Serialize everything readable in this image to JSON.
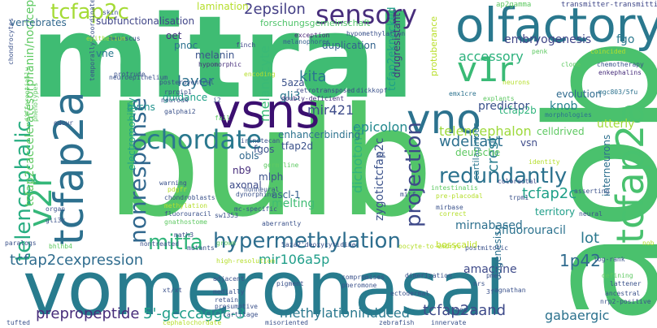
{
  "words": [
    {
      "t": "mitral",
      "c": "#3fbc73"
    },
    {
      "t": "bulb",
      "c": "#52c569"
    },
    {
      "t": "vomeronasal",
      "c": "#287c8e"
    },
    {
      "t": "aob",
      "c": "#4ac16d"
    },
    {
      "t": "olfactory",
      "c": "#2a788e"
    },
    {
      "t": "vsns",
      "c": "#3b0f70"
    },
    {
      "t": "vno",
      "c": "#2c728e"
    },
    {
      "t": "tcfap2a",
      "c": "#2d708e"
    },
    {
      "t": "tcfap2a",
      "c": "#48c16e"
    },
    {
      "t": "v2r",
      "c": "#35b779"
    },
    {
      "t": "v1r",
      "c": "#3aba76"
    },
    {
      "t": "sensory",
      "c": "#472d7b"
    },
    {
      "t": "tcfap2c",
      "c": "#a5db36"
    },
    {
      "t": "chordate",
      "c": "#2a788e"
    },
    {
      "t": "nonresponse",
      "c": "#31688e"
    },
    {
      "t": "telencephalic",
      "c": "#27ad81"
    },
    {
      "t": "hypermethylation",
      "c": "#2e6e8e"
    },
    {
      "t": "mitfa",
      "c": "#31b57b"
    },
    {
      "t": "redundantly",
      "c": "#2c728e"
    },
    {
      "t": "projection",
      "c": "#3e4989"
    },
    {
      "t": "tcfap2cexpression",
      "c": "#2f6c8e"
    },
    {
      "t": "prepropeptide",
      "c": "#472c7a"
    },
    {
      "t": "5'-gcccaggc-3",
      "c": "#1f9e89"
    },
    {
      "t": "methylationinduced",
      "c": "#2a788e"
    },
    {
      "t": "tcfap2aand",
      "c": "#3e4a89"
    },
    {
      "t": "gabaergic",
      "c": "#2c728e"
    },
    {
      "t": "2epsilon",
      "c": "#433e85"
    },
    {
      "t": "accessory",
      "c": "#2db27d"
    },
    {
      "t": "layer",
      "c": "#2d708e"
    },
    {
      "t": "kita",
      "c": "#2a788e"
    },
    {
      "t": "gli3",
      "c": "#2a788e"
    },
    {
      "t": "melanocyte",
      "c": "#3aba76"
    },
    {
      "t": "tcfap2eknocked",
      "c": "#1fa088"
    },
    {
      "t": "embryogenesis",
      "c": "#404688"
    },
    {
      "t": "fgo",
      "c": "#2a788e"
    },
    {
      "t": "evolution",
      "c": "#2f6b8e"
    },
    {
      "t": "knob",
      "c": "#25838e"
    },
    {
      "t": "utterly",
      "c": "#a2da37"
    },
    {
      "t": "telencephalon",
      "c": "#9dd93b"
    },
    {
      "t": "wdeltaet",
      "c": "#2d708e"
    },
    {
      "t": "epicolon",
      "c": "#23898e"
    },
    {
      "t": "mir421",
      "c": "#3e4c8a"
    },
    {
      "t": "tcfap2c",
      "c": "#1fa088"
    },
    {
      "t": "tcfap2b",
      "c": "#2fb47c"
    },
    {
      "t": "lot",
      "c": "#2a788e"
    },
    {
      "t": "1p42",
      "c": "#2f6b8e"
    },
    {
      "t": "crest",
      "c": "#287d8e"
    },
    {
      "t": "tcfap2cacceleratesorphanin/nociceptin",
      "c": "#5ec962"
    },
    {
      "t": "dichotomy",
      "c": "#31b57b"
    },
    {
      "t": "zygotictcfap2c",
      "c": "#3b528b"
    },
    {
      "t": "amacrine",
      "c": "#3e4a89"
    },
    {
      "t": "mirnabased",
      "c": "#2d708e"
    },
    {
      "t": "5fluorouracil",
      "c": "#2c728e"
    },
    {
      "t": "oogenesis",
      "c": "#2d708e"
    },
    {
      "t": "mir106a5p",
      "c": "#1f9e89"
    },
    {
      "t": "bvsns",
      "c": "#20928c"
    },
    {
      "t": "guidance",
      "c": "#1fa088"
    },
    {
      "t": "melting",
      "c": "#3fbc73"
    },
    {
      "t": "subfunctionalisation",
      "c": "#404688"
    },
    {
      "t": "forschungsgemeinschaft",
      "c": "#50c46a"
    },
    {
      "t": "lamination",
      "c": "#b5de2b"
    },
    {
      "t": "vertebrates",
      "c": "#31688e"
    },
    {
      "t": "oet",
      "c": "#463480"
    },
    {
      "t": "vne",
      "c": "#2a788e"
    },
    {
      "t": "pnoc",
      "c": "#2c728e"
    },
    {
      "t": "melanin",
      "c": "#3b528b"
    },
    {
      "t": "5aza",
      "c": "#3b528b"
    },
    {
      "t": "duplication",
      "c": "#33638d"
    },
    {
      "t": "drugresistant",
      "c": "#46327e"
    },
    {
      "t": "enhancerbinding",
      "c": "#2c728e"
    },
    {
      "t": "tfap2d",
      "c": "#3b528b"
    },
    {
      "t": "fgos",
      "c": "#3b528b"
    },
    {
      "t": "obls",
      "c": "#31688e"
    },
    {
      "t": "nb9",
      "c": "#472d7b"
    },
    {
      "t": "mlph",
      "c": "#3b528b"
    },
    {
      "t": "axonal",
      "c": "#3e4c8a"
    },
    {
      "t": "ascl-1",
      "c": "#35608d"
    },
    {
      "t": "cartilaginous",
      "c": "#2a788e"
    },
    {
      "t": "territory",
      "c": "#1f9e89"
    },
    {
      "t": "interneurons",
      "c": "#2d708e"
    },
    {
      "t": "celldrived",
      "c": "#5ec962"
    },
    {
      "t": "deutsche",
      "c": "#5ec962"
    },
    {
      "t": "vsn",
      "c": "#3e4c8a"
    },
    {
      "t": "electromobility",
      "c": "#20a386"
    },
    {
      "t": "bosscalid",
      "c": "#bddf26"
    },
    {
      "t": "predictor",
      "c": "#3b528b"
    },
    {
      "t": "protuberance",
      "c": "#b8de29"
    },
    {
      "t": "transmitter-transmitting",
      "c": "#3f4788"
    },
    {
      "t": "ap2gamma",
      "c": "#5ec962"
    },
    {
      "t": "chondrocytes",
      "c": "#3b528b"
    },
    {
      "t": "exception",
      "c": "#482576"
    },
    {
      "t": "melanophores",
      "c": "#35608d"
    },
    {
      "t": "hypomethylation",
      "c": "#3b528b"
    },
    {
      "t": "meniscus",
      "c": "#3e4c8a"
    },
    {
      "t": "finch",
      "c": "#3f4788"
    },
    {
      "t": "epithelium",
      "c": "#a0da39"
    },
    {
      "t": "hypomorphic",
      "c": "#472d7b"
    },
    {
      "t": "protrude",
      "c": "#3b528b"
    },
    {
      "t": "neuroepithelium",
      "c": "#3b528b"
    },
    {
      "t": "posteroventral",
      "c": "#3b528b"
    },
    {
      "t": "rprgip1",
      "c": "#3b528b"
    },
    {
      "t": "encoding",
      "c": "#b5de2b"
    },
    {
      "t": "retrotransposed",
      "c": "#3f4788"
    },
    {
      "t": "doubly-deficient",
      "c": "#46327e"
    },
    {
      "t": "neurod4",
      "c": "#3b528b"
    },
    {
      "t": "galphai2",
      "c": "#3b528b"
    },
    {
      "t": "dickkopf",
      "c": "#3b528b"
    },
    {
      "t": "emx1cre",
      "c": "#2c728e"
    },
    {
      "t": "explants",
      "c": "#5ec962"
    },
    {
      "t": "morphologies",
      "c": "#2c728e"
    },
    {
      "t": "mgc803/5fu",
      "c": "#2c728e"
    },
    {
      "t": "chemotherapy",
      "c": "#3b528b"
    },
    {
      "t": "enkephalins",
      "c": "#472d7b"
    },
    {
      "t": "coincided",
      "c": "#b5de2b"
    },
    {
      "t": "clone",
      "c": "#5ec962"
    },
    {
      "t": "neurons",
      "c": "#b5de2b"
    },
    {
      "t": "penk",
      "c": "#5ec962"
    },
    {
      "t": "odour",
      "c": "#3b528b"
    },
    {
      "t": "irinotecan",
      "c": "#3b528b"
    },
    {
      "t": "fail",
      "c": "#5ec962"
    },
    {
      "t": "identity",
      "c": "#b5de2b"
    },
    {
      "t": "germ-line",
      "c": "#5ec962"
    },
    {
      "t": "dynorphins",
      "c": "#3b528b"
    },
    {
      "t": "mc-specific",
      "c": "#3b528b"
    },
    {
      "t": "nonneural",
      "c": "#3b528b"
    },
    {
      "t": "colorectal",
      "c": "#3e4c8a"
    },
    {
      "t": "intestinalis",
      "c": "#5ec962"
    },
    {
      "t": "pre-placodal",
      "c": "#b5de2b"
    },
    {
      "t": "trpm1",
      "c": "#3b528b"
    },
    {
      "t": "asserting",
      "c": "#3b528b"
    },
    {
      "t": "mirbase",
      "c": "#3b528b"
    },
    {
      "t": "correct",
      "c": "#b5de2b"
    },
    {
      "t": "neural",
      "c": "#3b528b"
    },
    {
      "t": "math3",
      "c": "#3b528b"
    },
    {
      "t": "mutants",
      "c": "#3b528b"
    },
    {
      "t": "aberrantly",
      "c": "#3b528b"
    },
    {
      "t": "postmitotic",
      "c": "#3b528b"
    },
    {
      "t": "oocyte-to-embryo",
      "c": "#b5de2b"
    },
    {
      "t": "log-rank",
      "c": "#3b528b"
    },
    {
      "t": "nontreated",
      "c": "#3b528b"
    },
    {
      "t": "grown",
      "c": "#5ec962"
    },
    {
      "t": "5aza2'deoxycytidine",
      "c": "#3b528b"
    },
    {
      "t": "dimerization",
      "c": "#3b528b"
    },
    {
      "t": "paralogs",
      "c": "#3b528b"
    },
    {
      "t": "bhlhb4",
      "c": "#5ec962"
    },
    {
      "t": "high-resolution",
      "c": "#b5de2b"
    },
    {
      "t": "agnathan",
      "c": "#3b528b"
    },
    {
      "t": "adjacent",
      "c": "#3b528b"
    },
    {
      "t": "compromises",
      "c": "#3b528b"
    },
    {
      "t": "ancestral",
      "c": "#3b528b"
    },
    {
      "t": "defining",
      "c": "#5ec962"
    },
    {
      "t": "nrp2-positive",
      "c": "#3b528b"
    },
    {
      "t": "xt/xt",
      "c": "#3b528b"
    },
    {
      "t": "medially",
      "c": "#3b528b"
    },
    {
      "t": "retain",
      "c": "#3b528b"
    },
    {
      "t": "presumptive",
      "c": "#3b528b"
    },
    {
      "t": "ectodermal",
      "c": "#3b528b"
    },
    {
      "t": "cartilage",
      "c": "#3b528b"
    },
    {
      "t": "cephalochordate",
      "c": "#b5de2b"
    },
    {
      "t": "misoriented",
      "c": "#3b528b"
    },
    {
      "t": "zebrafish",
      "c": "#3b528b"
    },
    {
      "t": "innervate",
      "c": "#3b528b"
    },
    {
      "t": "tufted",
      "c": "#3b528b"
    },
    {
      "t": "chondroblasts",
      "c": "#3b528b"
    },
    {
      "t": "methylation",
      "c": "#b5de2b"
    },
    {
      "t": "fluorouracil",
      "c": "#3b528b"
    },
    {
      "t": "gnathostome",
      "c": "#5ec962"
    },
    {
      "t": "warning",
      "c": "#3b528b"
    },
    {
      "t": "skin",
      "c": "#3b528b"
    },
    {
      "t": "organ",
      "c": "#3b528b"
    },
    {
      "t": "gli3r",
      "c": "#3b528b"
    },
    {
      "t": "sw1353",
      "c": "#3b528b"
    },
    {
      "t": "mitf",
      "c": "#3b528b"
    },
    {
      "t": "temporally-coordinated",
      "c": "#3b528b"
    },
    {
      "t": "differentially",
      "c": "#5ec962"
    },
    {
      "t": "phenotypes",
      "c": "#5ec962"
    },
    {
      "t": "i2",
      "c": "#3b528b"
    },
    {
      "t": "nrs",
      "c": "#3b528b"
    },
    {
      "t": "3f",
      "c": "#3b528b"
    },
    {
      "t": "nob",
      "c": "#b5de2b"
    },
    {
      "t": "gz",
      "c": "#3b528b"
    },
    {
      "t": "nea",
      "c": "#3b528b"
    },
    {
      "t": "pmel",
      "c": "#3b528b"
    },
    {
      "t": "pdgfr",
      "c": "#b5de2b"
    },
    {
      "t": "lattener",
      "c": "#3b528b"
    },
    {
      "t": "pigment",
      "c": "#3b528b"
    },
    {
      "t": "pheromone",
      "c": "#3b528b"
    }
  ]
}
